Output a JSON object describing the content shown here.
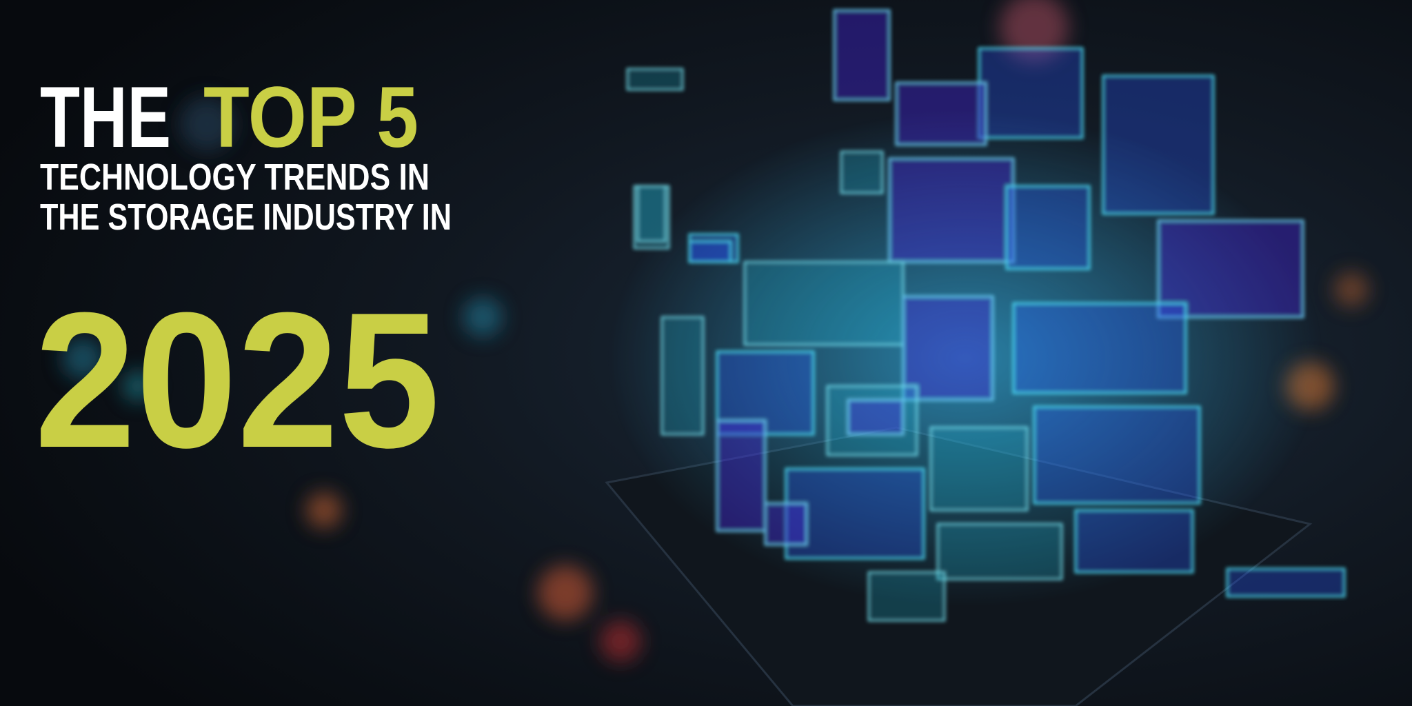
{
  "headline": {
    "line1_white": "THE",
    "line1_accent": "TOP 5",
    "line2": "TECHNOLOGY TRENDS IN",
    "line3": "THE STORAGE INDUSTRY IN",
    "year": "2025"
  }
}
